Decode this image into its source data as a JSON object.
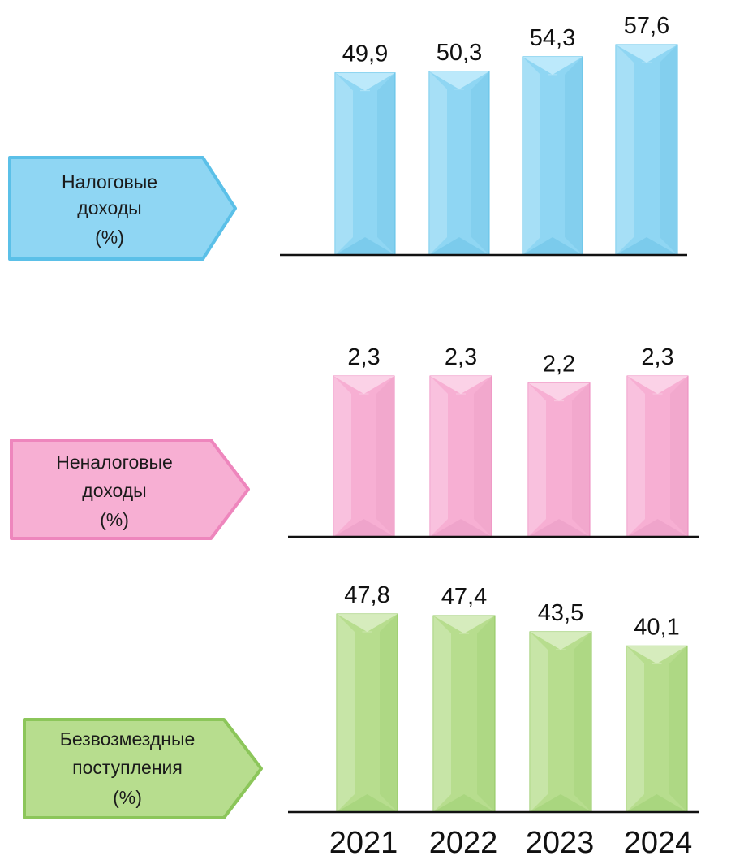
{
  "chart_data": [
    {
      "type": "bar",
      "label_lines": [
        "Налоговые",
        "доходы",
        "(%)"
      ],
      "categories": [
        "2021",
        "2022",
        "2023",
        "2024"
      ],
      "values": [
        49.9,
        50.3,
        54.3,
        57.6
      ],
      "value_labels": [
        "49,9",
        "50,3",
        "54,3",
        "57,6"
      ],
      "colors": {
        "fill": "#8fd6f3",
        "edge": "#5bc0e8",
        "light": "#c4ecfb",
        "dark": "#6cc3e6"
      }
    },
    {
      "type": "bar",
      "label_lines": [
        "Неналоговые",
        "доходы",
        "(%)"
      ],
      "categories": [
        "2021",
        "2022",
        "2023",
        "2024"
      ],
      "values": [
        2.3,
        2.3,
        2.2,
        2.3
      ],
      "value_labels": [
        "2,3",
        "2,3",
        "2,2",
        "2,3"
      ],
      "colors": {
        "fill": "#f7afd3",
        "edge": "#ee86bd",
        "light": "#fbd8ea",
        "dark": "#e99ac4"
      }
    },
    {
      "type": "bar",
      "label_lines": [
        "Безвозмездные",
        "поступления",
        "(%)"
      ],
      "categories": [
        "2021",
        "2022",
        "2023",
        "2024"
      ],
      "values": [
        47.8,
        47.4,
        43.5,
        40.1
      ],
      "value_labels": [
        "47,8",
        "47,4",
        "43,5",
        "40,1"
      ],
      "colors": {
        "fill": "#b7dd8e",
        "edge": "#8cc65a",
        "light": "#dcefc6",
        "dark": "#9fcf72"
      }
    }
  ],
  "x_axis_labels": [
    "2021",
    "2022",
    "2023",
    "2024"
  ]
}
